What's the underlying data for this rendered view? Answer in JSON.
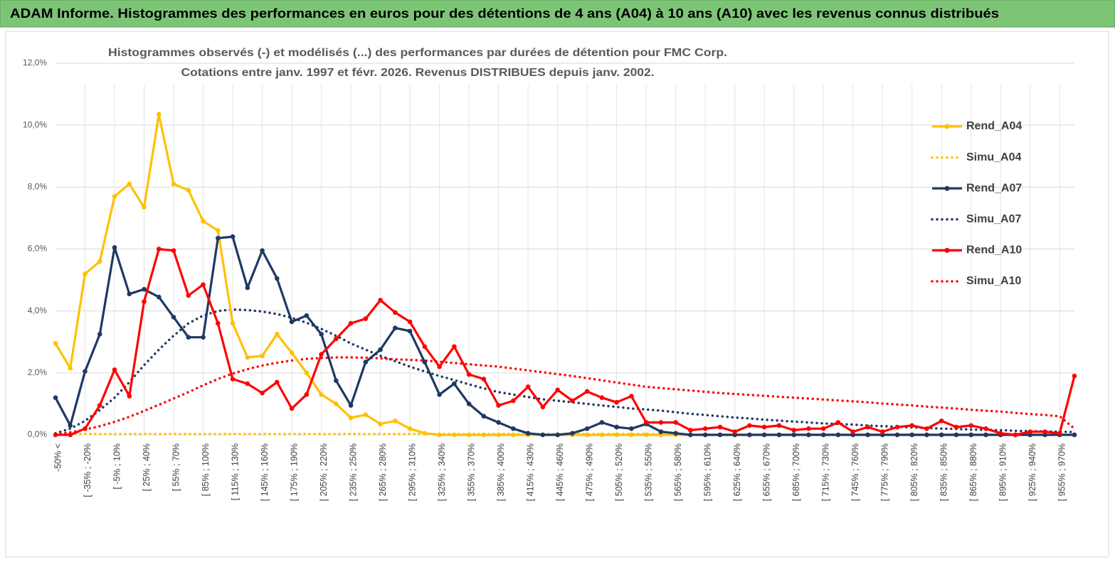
{
  "chart_data": {
    "type": "line",
    "header": "ADAM Informe. Histogrammes des performances en euros pour des détentions de 4 ans (A04) à 10 ans (A10) avec les revenus connus distribués",
    "title": [
      "Histogrammes observés (-) et modélisés (...) des performances par durées de détention pour FMC Corp.",
      "Cotations entre janv. 1997 et févr. 2026. Revenus DISTRIBUES depuis janv. 2002."
    ],
    "categories": [
      "-50% <",
      null,
      "[ -35% ; -20%",
      null,
      "[ -5% ; 10%",
      null,
      "[ 25% ; 40%",
      null,
      "[ 55% ; 70%",
      null,
      "[ 85% ; 100%",
      null,
      "[ 115% ; 130%",
      null,
      "[ 145% ; 160%",
      null,
      "[ 175% ; 190%",
      null,
      "[ 205% ; 220%",
      null,
      "[ 235% ; 250%",
      null,
      "[ 265% ; 280%",
      null,
      "[ 295% ; 310%",
      null,
      "[ 325% ; 340%",
      null,
      "[ 355% ; 370%",
      null,
      "[ 385% ; 400%",
      null,
      "[ 415% ; 430%",
      null,
      "[ 445% ; 460%",
      null,
      "[ 475% ; 490%",
      null,
      "[ 505% ; 520%",
      null,
      "[ 535% ; 550%",
      null,
      "[ 565% ; 580%",
      null,
      "[ 595% ; 610%",
      null,
      "[ 625% ; 640%",
      null,
      "[ 655% ; 670%",
      null,
      "[ 685% ; 700%",
      null,
      "[ 715% ; 730%",
      null,
      "[ 745% ; 760%",
      null,
      "[ 775% ; 790%",
      null,
      "[ 805% ; 820%",
      null,
      "[ 835% ; 850%",
      null,
      "[ 865% ; 880%",
      null,
      "[ 895% ; 910%",
      null,
      "[ 925% ; 940%",
      null,
      "[ 955% ; 970%",
      null
    ],
    "ylim": [
      0,
      12
    ],
    "yticks": [
      {
        "value": 0,
        "label": "0,0%"
      },
      {
        "value": 2,
        "label": "2,0%"
      },
      {
        "value": 4,
        "label": "4,0%"
      },
      {
        "value": 6,
        "label": "6,0%"
      },
      {
        "value": 8,
        "label": "8,0%"
      },
      {
        "value": 10,
        "label": "10,0%"
      },
      {
        "value": 12,
        "label": "12,0%"
      }
    ],
    "grid": true,
    "legend": "right",
    "series": [
      {
        "name": "Rend_A04",
        "color": "#ffc000",
        "style": "solid",
        "markers": true,
        "values": [
          2.95,
          2.15,
          5.2,
          5.6,
          7.7,
          8.1,
          7.35,
          10.35,
          8.1,
          7.9,
          6.9,
          6.6,
          3.6,
          2.5,
          2.55,
          3.25,
          2.65,
          2.0,
          1.3,
          1.0,
          0.55,
          0.65,
          0.35,
          0.45,
          0.2,
          0.05,
          0,
          0,
          0,
          0,
          0,
          0,
          0,
          0,
          0,
          0,
          0,
          0,
          0,
          0,
          0,
          0,
          0,
          0,
          0,
          0,
          0,
          0,
          0,
          0,
          0,
          0,
          0,
          0,
          0,
          0,
          0,
          0,
          0,
          0,
          0,
          0,
          0,
          0,
          0,
          0,
          0,
          0,
          0,
          0
        ]
      },
      {
        "name": "Simu_A04",
        "color": "#ffc000",
        "style": "dotted",
        "markers": false,
        "values": [
          0.03,
          0.03,
          0.03,
          0.03,
          0.03,
          0.03,
          0.03,
          0.03,
          0.03,
          0.03,
          0.03,
          0.03,
          0.03,
          0.03,
          0.03,
          0.03,
          0.03,
          0.03,
          0.03,
          0.03,
          0.03,
          0.03,
          0.03,
          0.03,
          0.03,
          0.03,
          0.03,
          0.03,
          0.03,
          0.03,
          0.03,
          0.03,
          0.03,
          0.03,
          0.03,
          0.03,
          0.03,
          0.03,
          0.03,
          0.03,
          0.03,
          0.03,
          null,
          null,
          null,
          null,
          null,
          null,
          null,
          null,
          null,
          null,
          null,
          null,
          null,
          null,
          null,
          null,
          null,
          null,
          null,
          null,
          null,
          null,
          null,
          null,
          null,
          null,
          null,
          null
        ]
      },
      {
        "name": "Rend_A07",
        "color": "#1f3864",
        "style": "solid",
        "markers": true,
        "values": [
          1.2,
          0.3,
          2.05,
          3.25,
          6.05,
          4.55,
          4.7,
          4.45,
          3.8,
          3.15,
          3.15,
          6.35,
          6.4,
          4.75,
          5.95,
          5.05,
          3.65,
          3.85,
          3.25,
          1.75,
          0.95,
          2.35,
          2.75,
          3.45,
          3.35,
          2.35,
          1.3,
          1.65,
          1.0,
          0.6,
          0.4,
          0.2,
          0.05,
          0,
          0,
          0.05,
          0.2,
          0.4,
          0.25,
          0.2,
          0.35,
          0.1,
          0.05,
          0,
          0,
          0,
          0,
          0,
          0,
          0,
          0,
          0,
          0,
          0,
          0,
          0,
          0,
          0,
          0,
          0,
          0,
          0,
          0,
          0,
          0,
          0,
          0,
          0,
          0,
          0
        ]
      },
      {
        "name": "Simu_A07",
        "color": "#1f3864",
        "style": "dotted",
        "markers": false,
        "values": [
          0.05,
          0.2,
          0.45,
          0.8,
          1.2,
          1.7,
          2.25,
          2.75,
          3.2,
          3.6,
          3.85,
          4.0,
          4.05,
          4.03,
          3.98,
          3.9,
          3.78,
          3.62,
          3.42,
          3.2,
          2.95,
          2.75,
          2.55,
          2.38,
          2.2,
          2.05,
          1.9,
          1.77,
          1.63,
          1.5,
          1.38,
          1.3,
          1.22,
          1.15,
          1.1,
          1.05,
          1.0,
          0.95,
          0.9,
          0.85,
          0.82,
          0.78,
          0.73,
          0.68,
          0.64,
          0.6,
          0.56,
          0.53,
          0.49,
          0.46,
          0.43,
          0.4,
          0.37,
          0.35,
          0.33,
          0.3,
          0.28,
          0.26,
          0.24,
          0.22,
          0.2,
          0.19,
          0.17,
          0.16,
          0.15,
          0.13,
          0.12,
          0.11,
          0.1,
          0.09
        ]
      },
      {
        "name": "Rend_A10",
        "color": "#ff0000",
        "style": "solid",
        "markers": true,
        "values": [
          0,
          0,
          0.2,
          0.95,
          2.1,
          1.25,
          4.3,
          6.0,
          5.95,
          4.5,
          4.85,
          3.6,
          1.8,
          1.65,
          1.35,
          1.7,
          0.85,
          1.3,
          2.6,
          3.1,
          3.6,
          3.75,
          4.35,
          3.95,
          3.65,
          2.85,
          2.2,
          2.85,
          1.95,
          1.8,
          0.95,
          1.1,
          1.55,
          0.9,
          1.45,
          1.1,
          1.4,
          1.2,
          1.05,
          1.25,
          0.4,
          0.4,
          0.4,
          0.15,
          0.2,
          0.25,
          0.1,
          0.3,
          0.25,
          0.3,
          0.15,
          0.2,
          0.2,
          0.4,
          0.1,
          0.25,
          0.1,
          0.25,
          0.3,
          0.2,
          0.45,
          0.25,
          0.3,
          0.2,
          0.05,
          0,
          0.1,
          0.1,
          0.05,
          1.9
        ]
      },
      {
        "name": "Simu_A10",
        "color": "#ff0000",
        "style": "dotted",
        "markers": false,
        "values": [
          0.02,
          0.08,
          0.17,
          0.28,
          0.42,
          0.58,
          0.77,
          0.97,
          1.17,
          1.38,
          1.6,
          1.8,
          1.98,
          2.12,
          2.24,
          2.33,
          2.4,
          2.45,
          2.48,
          2.5,
          2.5,
          2.49,
          2.47,
          2.44,
          2.42,
          2.4,
          2.36,
          2.32,
          2.28,
          2.24,
          2.2,
          2.14,
          2.08,
          2.02,
          1.96,
          1.9,
          1.83,
          1.76,
          1.69,
          1.62,
          1.55,
          1.51,
          1.47,
          1.43,
          1.39,
          1.35,
          1.32,
          1.29,
          1.26,
          1.23,
          1.2,
          1.17,
          1.14,
          1.11,
          1.08,
          1.05,
          1.01,
          0.98,
          0.95,
          0.91,
          0.88,
          0.85,
          0.81,
          0.78,
          0.75,
          0.71,
          0.67,
          0.64,
          0.6,
          0.2
        ]
      }
    ]
  }
}
